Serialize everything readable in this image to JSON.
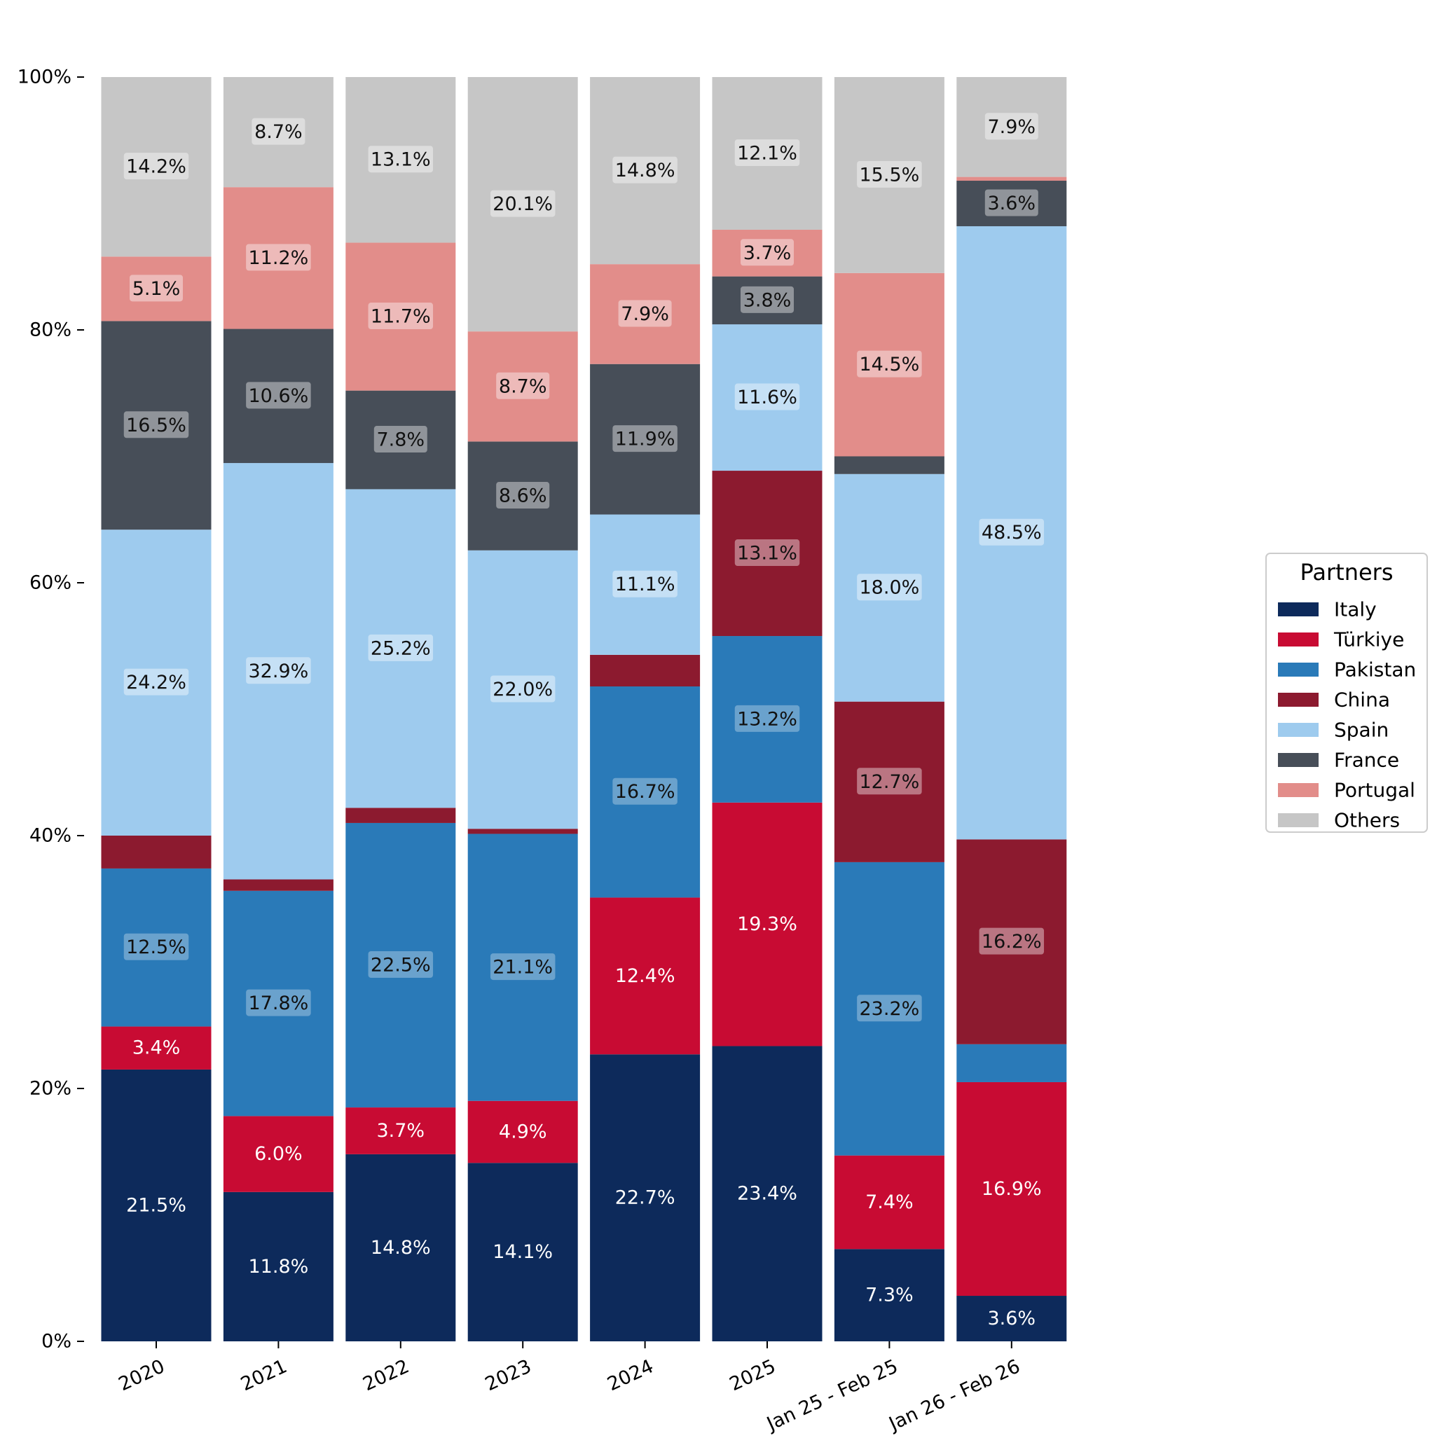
{
  "chart_data": {
    "type": "bar",
    "stacked": true,
    "normalized": true,
    "categories": [
      "2020",
      "2021",
      "2022",
      "2023",
      "2024",
      "2025",
      "Jan 25 - Feb 25",
      "Jan 26 - Feb 26"
    ],
    "series": [
      {
        "name": "Italy",
        "color": "#0d2a5b",
        "values": [
          21.5,
          11.8,
          14.8,
          14.1,
          22.7,
          23.4,
          7.3,
          3.6
        ],
        "labels": [
          "21.5%",
          "11.8%",
          "14.8%",
          "14.1%",
          "22.7%",
          "23.4%",
          "7.3%",
          "3.6%"
        ]
      },
      {
        "name": "Türkiye",
        "color": "#c80b33",
        "values": [
          3.4,
          6.0,
          3.7,
          4.9,
          12.4,
          19.3,
          7.4,
          16.9
        ],
        "labels": [
          "3.4%",
          "6.0%",
          "3.7%",
          "4.9%",
          "12.4%",
          "19.3%",
          "7.4%",
          "16.9%"
        ]
      },
      {
        "name": "Pakistan",
        "color": "#2a7ab8",
        "values": [
          12.5,
          17.8,
          22.5,
          21.1,
          16.7,
          13.2,
          23.2,
          3.0
        ],
        "labels": [
          "12.5%",
          "17.8%",
          "22.5%",
          "21.1%",
          "16.7%",
          "13.2%",
          "23.2%",
          ""
        ]
      },
      {
        "name": "China",
        "color": "#8c1a2f",
        "values": [
          2.6,
          0.9,
          1.2,
          0.4,
          2.5,
          13.1,
          12.7,
          16.2
        ],
        "labels": [
          "",
          "",
          "",
          "",
          "",
          "13.1%",
          "12.7%",
          "16.2%"
        ]
      },
      {
        "name": "Spain",
        "color": "#9ecbee",
        "values": [
          24.2,
          32.9,
          25.2,
          22.0,
          11.1,
          11.6,
          18.0,
          48.5
        ],
        "labels": [
          "24.2%",
          "32.9%",
          "25.2%",
          "22.0%",
          "11.1%",
          "11.6%",
          "18.0%",
          "48.5%"
        ]
      },
      {
        "name": "France",
        "color": "#474e58",
        "values": [
          16.5,
          10.6,
          7.8,
          8.6,
          11.9,
          3.8,
          1.4,
          3.6
        ],
        "labels": [
          "16.5%",
          "10.6%",
          "7.8%",
          "8.6%",
          "11.9%",
          "3.8%",
          "",
          "3.6%"
        ]
      },
      {
        "name": "Portugal",
        "color": "#e28d8a",
        "values": [
          5.1,
          11.2,
          11.7,
          8.7,
          7.9,
          3.7,
          14.5,
          0.3
        ],
        "labels": [
          "5.1%",
          "11.2%",
          "11.7%",
          "8.7%",
          "7.9%",
          "3.7%",
          "14.5%",
          ""
        ]
      },
      {
        "name": "Others",
        "color": "#c6c6c6",
        "values": [
          14.2,
          8.7,
          13.1,
          20.1,
          14.8,
          12.1,
          15.5,
          7.9
        ],
        "labels": [
          "14.2%",
          "8.7%",
          "13.1%",
          "20.1%",
          "14.8%",
          "12.1%",
          "15.5%",
          "7.9%"
        ]
      }
    ],
    "ylim": [
      0,
      100
    ],
    "yticks": [
      0,
      20,
      40,
      60,
      80,
      100
    ],
    "ytick_labels": [
      "0%",
      "20%",
      "40%",
      "60%",
      "80%",
      "100%"
    ],
    "legend": {
      "title": "Partners",
      "placement": "right"
    },
    "xlabel": "",
    "ylabel": "",
    "title": ""
  }
}
